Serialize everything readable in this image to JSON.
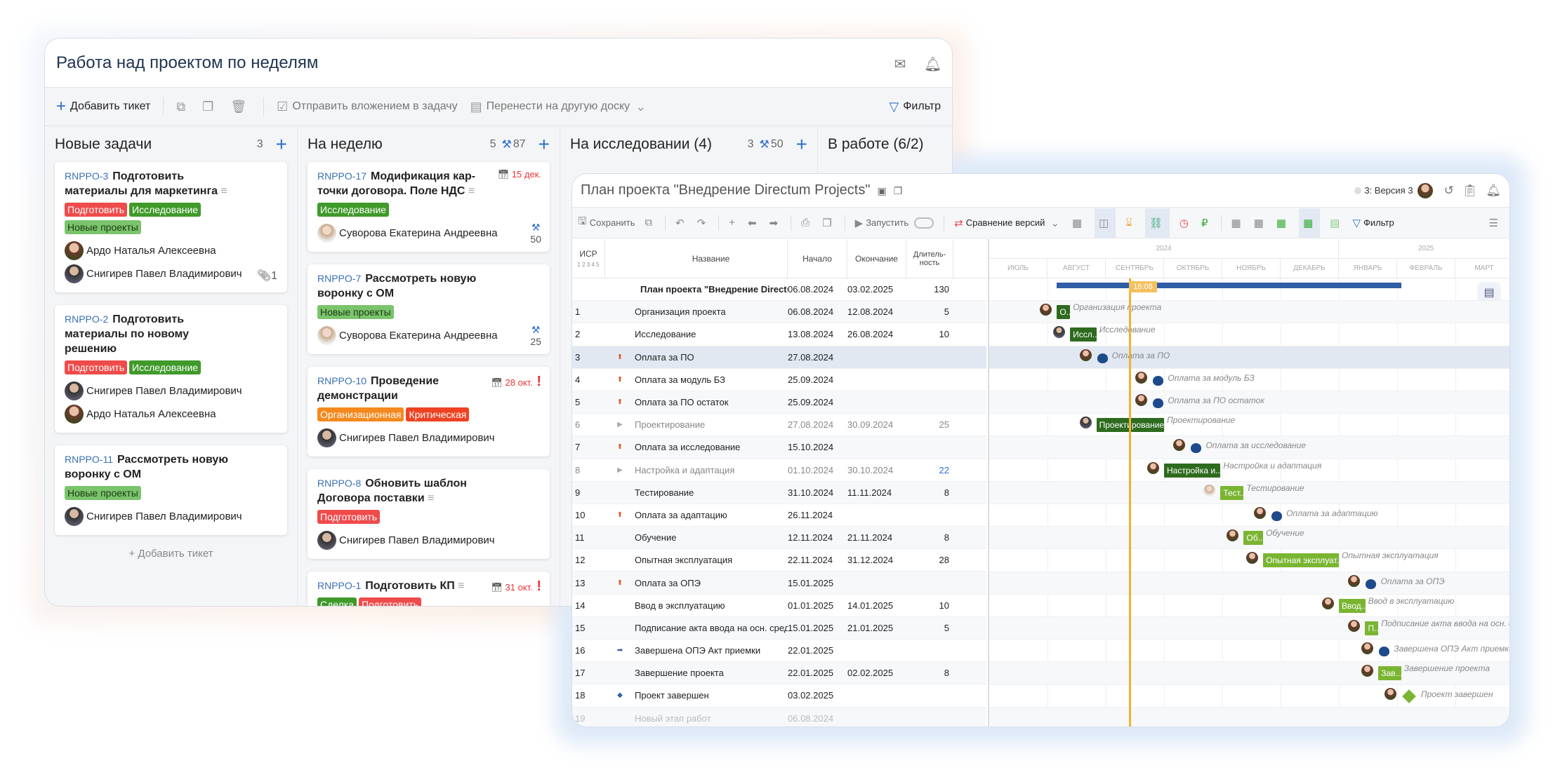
{
  "kanban": {
    "title": "Работа над проектом по неделям",
    "toolbar": {
      "add_ticket": "Добавить тикет",
      "send_attachment": "Отправить вложением в задачу",
      "move_board": "Перенести на другую доску",
      "filter": "Фильтр"
    },
    "add_ticket_link": "Добавить тикет",
    "columns": [
      {
        "name": "Новые задачи",
        "count": "3",
        "effort": "",
        "cards": [
          {
            "id": "RNPPO-3",
            "title": "Подготовить материалы для маркетинга",
            "has_desc": true,
            "tags": [
              {
                "label": "Подготовить",
                "color": "#ef4b4b"
              },
              {
                "label": "Исследование",
                "color": "#3f9a2a"
              },
              {
                "label": "Новые проекты",
                "color": "#7ac46c",
                "dark": true
              }
            ],
            "people": [
              "Ардо Наталья Алексеевна",
              "Снигирев Павел Владимирович"
            ],
            "attachments": "1"
          },
          {
            "id": "RNPPO-2",
            "title": "Подготовить материалы по новому решению",
            "tags": [
              {
                "label": "Подготовить",
                "color": "#ef4b4b"
              },
              {
                "label": "Исследование",
                "color": "#3f9a2a"
              }
            ],
            "people": [
              "Снигирев Павел Владимирович",
              "Ардо Наталья Алексеевна"
            ]
          },
          {
            "id": "RNPPO-11",
            "title": "Рассмотреть новую воронку с ОМ",
            "tags": [
              {
                "label": "Новые проекты",
                "color": "#7ac46c",
                "dark": true
              }
            ],
            "people": [
              "Снигирев Павел Владимирович"
            ]
          }
        ]
      },
      {
        "name": "На неделю",
        "count": "5",
        "effort": "87",
        "cards": [
          {
            "id": "RNPPO-17",
            "title": "Модификация кар-точки договора. Поле НДС",
            "has_desc": true,
            "due": "15 дек.",
            "tags": [
              {
                "label": "Исследование",
                "color": "#3f9a2a"
              }
            ],
            "people": [
              "Суворова Екатерина Андреевна"
            ],
            "effort": "50"
          },
          {
            "id": "RNPPO-7",
            "title": "Рассмотреть новую воронку с ОМ",
            "tags": [
              {
                "label": "Новые проекты",
                "color": "#7ac46c",
                "dark": true
              }
            ],
            "people": [
              "Суворова Екатерина Андреевна"
            ],
            "effort": "25"
          },
          {
            "id": "RNPPO-10",
            "title": "Проведение демонстрации",
            "due": "28 окт.",
            "critical": true,
            "tags": [
              {
                "label": "Организационная",
                "color": "#f5891f"
              },
              {
                "label": "Критическая",
                "color": "#ee4322"
              }
            ],
            "people": [
              "Снигирев Павел Владимирович"
            ]
          },
          {
            "id": "RNPPO-8",
            "title": "Обновить шаблон Договора поставки",
            "has_desc": true,
            "tags": [
              {
                "label": "Подготовить",
                "color": "#ef4b4b"
              }
            ],
            "people": [
              "Снигирев Павел Владимирович"
            ]
          },
          {
            "id": "RNPPO-1",
            "title": "Подготовить КП",
            "has_desc": true,
            "due": "31 окт.",
            "critical": true,
            "tags": [
              {
                "label": "Сделка",
                "color": "#3f9a2a"
              },
              {
                "label": "Подготовить",
                "color": "#ef4b4b"
              }
            ],
            "people": []
          }
        ]
      },
      {
        "name": "На исследовании (4)",
        "count": "3",
        "effort": "50",
        "cards": []
      },
      {
        "name": "В работе (6/2)",
        "count": "",
        "effort": "",
        "cards": []
      }
    ]
  },
  "gantt": {
    "title": "План проекта \"Внедрение Directum Projects\"",
    "version": "3: Версия 3",
    "toolbar": {
      "save": "Сохранить",
      "run": "Запустить",
      "compare": "Сравнение версий",
      "filter": "Фильтр"
    },
    "headers": {
      "wbs": "ИСР",
      "levels": "1 2 3 4 5",
      "name": "Название",
      "start": "Начало",
      "end": "Окончание",
      "duration": "Длитель-ность"
    },
    "years": [
      "2024",
      "2025"
    ],
    "months": [
      "ИЮЛЬ",
      "АВГУСТ",
      "СЕНТЯБРЬ",
      "ОКТЯБРЬ",
      "НОЯБРЬ",
      "ДЕКАБРЬ",
      "ЯНВАРЬ",
      "ФЕВРАЛЬ",
      "МАРТ"
    ],
    "today_label": "16:08",
    "colors": {
      "dark_bar": "#2e6b1f",
      "light_bar": "#7ab532",
      "milestone": "#1e4a8c",
      "today": "#f2b134",
      "summary": "#2f5ea6"
    },
    "rows": [
      {
        "wbs": "",
        "name": "План проекта \"Внедрение Directum Pro...",
        "start": "06.08.2024",
        "end": "03.02.2025",
        "duration": "130",
        "summary": true
      },
      {
        "wbs": "1",
        "name": "Организация проекта",
        "start": "06.08.2024",
        "end": "12.08.2024",
        "duration": "5",
        "bar": "dark",
        "bar_label": "О...",
        "chart_label": "Организация проекта"
      },
      {
        "wbs": "2",
        "name": "Исследование",
        "start": "13.08.2024",
        "end": "26.08.2024",
        "duration": "10",
        "bar": "dark",
        "bar_label": "Иссл...",
        "chart_label": "Исследование"
      },
      {
        "wbs": "3",
        "icon": "payment-up",
        "name": "Оплата за ПО",
        "start": "27.08.2024",
        "end": "",
        "duration": "",
        "payment": true,
        "chart_label": "Оплата за ПО",
        "highlight": true
      },
      {
        "wbs": "4",
        "icon": "payment-up",
        "name": "Оплата за модуль БЗ",
        "start": "25.09.2024",
        "end": "",
        "duration": "",
        "payment": true,
        "chart_label": "Оплата за модуль БЗ"
      },
      {
        "wbs": "5",
        "icon": "payment-up",
        "name": "Оплата за ПО остаток",
        "start": "25.09.2024",
        "end": "",
        "duration": "",
        "payment": true,
        "chart_label": "Оплата за ПО остаток"
      },
      {
        "wbs": "6",
        "icon": "expand",
        "name": "Проектирование",
        "start": "27.08.2024",
        "end": "30.09.2024",
        "duration": "25",
        "muted": true,
        "bar": "dark",
        "bar_label": "Проектирование",
        "chart_label": "Проектирование"
      },
      {
        "wbs": "7",
        "icon": "payment-up",
        "name": "Оплата за исследование",
        "start": "15.10.2024",
        "end": "",
        "duration": "",
        "payment": true,
        "chart_label": "Оплата за исследование"
      },
      {
        "wbs": "8",
        "icon": "expand",
        "name": "Настройка и адаптация",
        "start": "01.10.2024",
        "end": "30.10.2024",
        "duration": "22",
        "muted": true,
        "dur_blue": true,
        "bar": "dark",
        "bar_label": "Настройка и...",
        "chart_label": "Настройка и адаптация"
      },
      {
        "wbs": "9",
        "name": "Тестирование",
        "start": "31.10.2024",
        "end": "11.11.2024",
        "duration": "8",
        "bar": "light",
        "bar_label": "Тест...",
        "chart_label": "Тестирование"
      },
      {
        "wbs": "10",
        "icon": "payment-up",
        "name": "Оплата за адаптацию",
        "start": "26.11.2024",
        "end": "",
        "duration": "",
        "payment": true,
        "chart_label": "Оплата за адаптацию"
      },
      {
        "wbs": "11",
        "name": "Обучение",
        "start": "12.11.2024",
        "end": "21.11.2024",
        "duration": "8",
        "bar": "light",
        "bar_label": "Об...",
        "chart_label": "Обучение"
      },
      {
        "wbs": "12",
        "name": "Опытная эксплуатация",
        "start": "22.11.2024",
        "end": "31.12.2024",
        "duration": "28",
        "bar": "light",
        "bar_label": "Опытная эксплуат...",
        "chart_label": "Опытная эксплуатация"
      },
      {
        "wbs": "13",
        "icon": "payment-up",
        "name": "Оплата за ОПЭ",
        "start": "15.01.2025",
        "end": "",
        "duration": "",
        "payment": true,
        "chart_label": "Оплата за ОПЭ"
      },
      {
        "wbs": "14",
        "name": "Ввод в эксплуатацию",
        "start": "01.01.2025",
        "end": "14.01.2025",
        "duration": "10",
        "bar": "light",
        "bar_label": "Ввод...",
        "chart_label": "Ввод в эксплуатацию"
      },
      {
        "wbs": "15",
        "name": "Подписание акта ввода на осн. средства",
        "start": "15.01.2025",
        "end": "21.01.2025",
        "duration": "5",
        "bar": "light",
        "bar_label": "П...",
        "chart_label": "Подписание акта ввода на осн. с"
      },
      {
        "wbs": "16",
        "icon": "payment-right",
        "name": "Завершена ОПЭ Акт приемки",
        "start": "22.01.2025",
        "end": "",
        "duration": "",
        "payment": true,
        "chart_label": "Завершена ОПЭ Акт приемки"
      },
      {
        "wbs": "17",
        "name": "Завершение проекта",
        "start": "22.01.2025",
        "end": "02.02.2025",
        "duration": "8",
        "bar": "light",
        "bar_label": "Зав...",
        "chart_label": "Завершение проекта"
      },
      {
        "wbs": "18",
        "icon": "milestone",
        "name": "Проект завершен",
        "start": "03.02.2025",
        "end": "",
        "duration": "",
        "milestone": true,
        "chart_label": "Проект завершен"
      },
      {
        "wbs": "19",
        "name": "Новый этап работ",
        "start": "06.08.2024",
        "end": "",
        "duration": "",
        "placeholder": true
      }
    ]
  }
}
